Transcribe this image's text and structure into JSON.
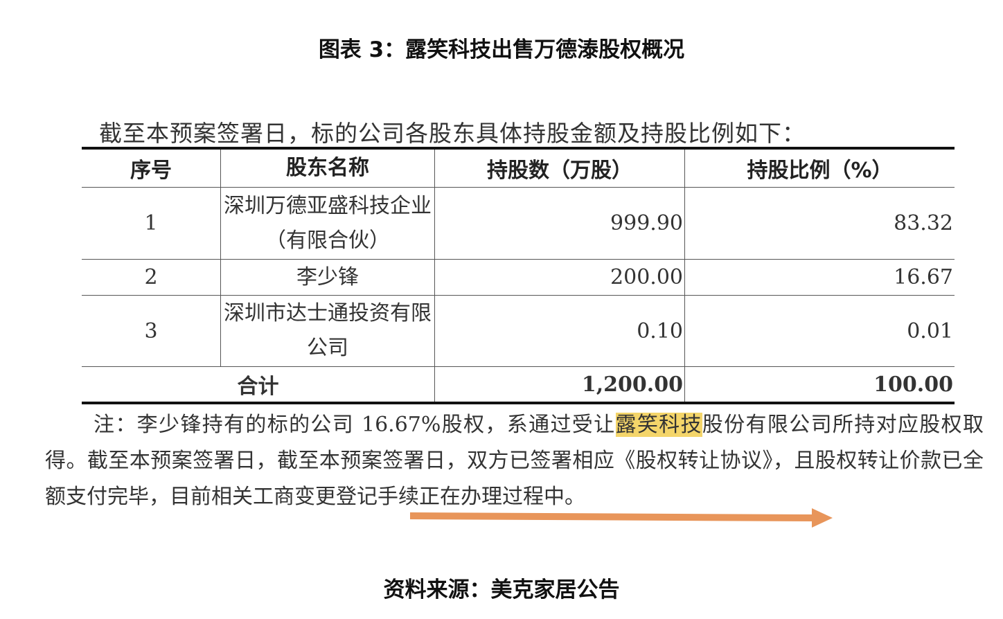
{
  "title": "图表 3：露笑科技出售万德溙股权概况",
  "intro": "截至本预案签署日，标的公司各股东具体持股金额及持股比例如下：",
  "table": {
    "headers": [
      "序号",
      "股东名称",
      "持股数（万股）",
      "持股比例（%）"
    ],
    "rows": [
      {
        "no": "1",
        "name": "深圳万德亚盛科技企业（有限合伙）",
        "shares": "999.90",
        "ratio": "83.32"
      },
      {
        "no": "2",
        "name": "李少锋",
        "shares": "200.00",
        "ratio": "16.67"
      },
      {
        "no": "3",
        "name": "深圳市达士通投资有限公司",
        "shares": "0.10",
        "ratio": "0.01"
      }
    ],
    "total": {
      "label": "合计",
      "shares": "1,200.00",
      "ratio": "100.00"
    }
  },
  "note": {
    "before": "注：李少锋持有的标的公司 16.67%股权，系通过受让",
    "highlight": "露笑科技",
    "after": "股份有限公司所持对应股权取得。截至本预案签署日，截至本预案签署日，双方已签署相应《股权转让协议》，且股权转让价款已全额支付完毕，目前相关工商变更登记手续正在办理过程中。"
  },
  "colors": {
    "highlight": "#f4d56a",
    "arrow": "#e8955a"
  },
  "source": "资料来源：美克家居公告"
}
